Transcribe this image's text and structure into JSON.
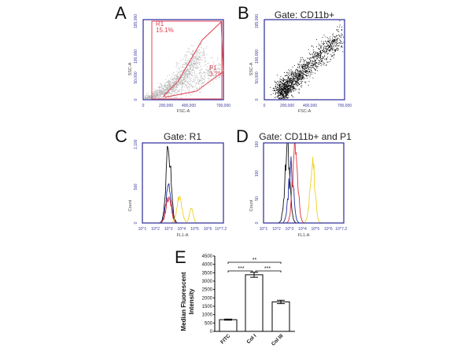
{
  "panels": {
    "A": {
      "letter": "A",
      "xlabel": "FSC-A",
      "ylabel": "SSC-A",
      "xticks": [
        "0",
        "200,000",
        "400,000",
        "700,000"
      ],
      "yticks": [
        "0",
        "50,000",
        "100,000",
        "185,000"
      ],
      "gates": [
        {
          "name": "R1",
          "pct": "15.1%"
        },
        {
          "name": "P1",
          "pct": "3.7%"
        }
      ]
    },
    "B": {
      "letter": "B",
      "title": "Gate: CD11b+",
      "xlabel": "FSC-A",
      "ylabel": "SSC-A",
      "xticks": [
        "0",
        "200,000",
        "400,000",
        "700,000"
      ],
      "yticks": [
        "0",
        "50,000",
        "100,000",
        "185,000"
      ]
    },
    "C": {
      "letter": "C",
      "title": "Gate: R1",
      "xlabel": "FL1-A",
      "ylabel": "Count",
      "xticks": [
        "10^1",
        "10^2",
        "10^3",
        "10^4",
        "10^5",
        "10^6",
        "10^7.2"
      ],
      "yticks": [
        "0",
        "500",
        "1,100"
      ]
    },
    "D": {
      "letter": "D",
      "title": "Gate: CD11b+ and P1",
      "xlabel": "FL1-A",
      "ylabel": "Count",
      "xticks": [
        "10^1",
        "10^2",
        "10^3",
        "10^4",
        "10^5",
        "10^6",
        "10^7.2"
      ],
      "yticks": [
        "0",
        "50",
        "100",
        "160"
      ]
    },
    "E": {
      "letter": "E"
    }
  },
  "colors": {
    "gate": "#e04050",
    "axis": "#3a3aa0",
    "black": "#111111",
    "blue": "#2030a0",
    "red": "#e03040",
    "yellow": "#f0d020",
    "scatter_A": "#b8b8b8"
  },
  "chart_data": [
    {
      "panel": "A",
      "type": "scatter",
      "xlim": [
        0,
        700000
      ],
      "ylim": [
        0,
        185000
      ],
      "description_points": "dense grey cloud"
    },
    {
      "panel": "B",
      "type": "scatter",
      "xlim": [
        0,
        700000
      ],
      "ylim": [
        0,
        185000
      ]
    },
    {
      "panel": "C",
      "type": "line",
      "xscale": "log",
      "xlim": [
        10,
        15849000
      ],
      "ylim": [
        0,
        1100
      ],
      "series": [
        {
          "color": "black",
          "peak_x": 1000,
          "peak_y": 950
        },
        {
          "color": "blue",
          "peak_x": 1000,
          "peak_y": 500
        },
        {
          "color": "red",
          "peak_x": 1000,
          "peak_y": 380
        },
        {
          "color": "yellow",
          "peak_x": 7000,
          "peak_y": 340
        }
      ]
    },
    {
      "panel": "D",
      "type": "line",
      "xscale": "log",
      "xlim": [
        10,
        15849000
      ],
      "ylim": [
        0,
        160
      ],
      "series": [
        {
          "color": "black",
          "peak_x": 700,
          "peak_y": 140
        },
        {
          "color": "blue",
          "peak_x": 1300,
          "peak_y": 105
        },
        {
          "color": "red",
          "peak_x": 2800,
          "peak_y": 155
        },
        {
          "color": "yellow",
          "peak_x": 60000,
          "peak_y": 115
        }
      ]
    },
    {
      "panel": "E",
      "type": "bar",
      "ylabel": "Median Fluorescent Intensity",
      "ylim": [
        0,
        4500
      ],
      "yticks": [
        "0",
        "500",
        "1000",
        "1500",
        "2000",
        "2500",
        "3000",
        "3500",
        "4000",
        "4500"
      ],
      "categories": [
        "FITC",
        "Col I",
        "Col III"
      ],
      "values": [
        700,
        3380,
        1760
      ],
      "errors": [
        30,
        150,
        100
      ],
      "significance": [
        {
          "pair": [
            "FITC",
            "Col I"
          ],
          "label": "***"
        },
        {
          "pair": [
            "Col I",
            "Col III"
          ],
          "label": "***"
        },
        {
          "pair": [
            "FITC",
            "Col III"
          ],
          "label": "**"
        }
      ]
    }
  ]
}
